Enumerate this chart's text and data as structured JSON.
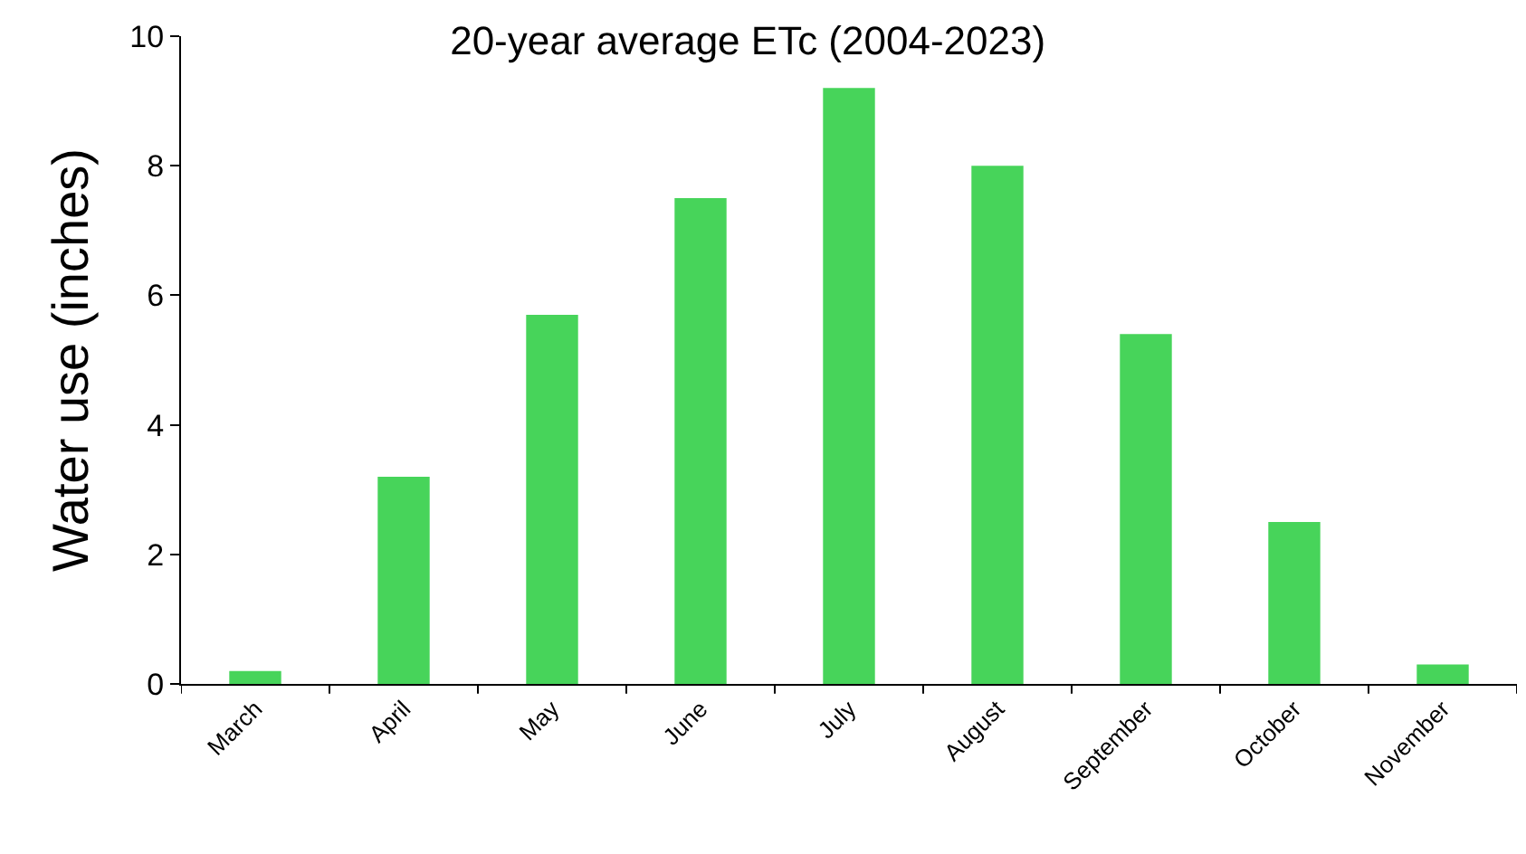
{
  "chart_data": {
    "type": "bar",
    "title": "20-year average ETc (2004-2023)",
    "ylabel": "Water use (inches)",
    "categories": [
      "March",
      "April",
      "May",
      "June",
      "July",
      "August",
      "September",
      "October",
      "November"
    ],
    "values": [
      0.2,
      3.2,
      5.7,
      7.5,
      9.2,
      8.0,
      5.4,
      2.5,
      0.3
    ],
    "color": "#47d45a",
    "ylim": [
      0,
      10
    ],
    "yticks": [
      0,
      2,
      4,
      6,
      8,
      10
    ],
    "grid": false
  }
}
